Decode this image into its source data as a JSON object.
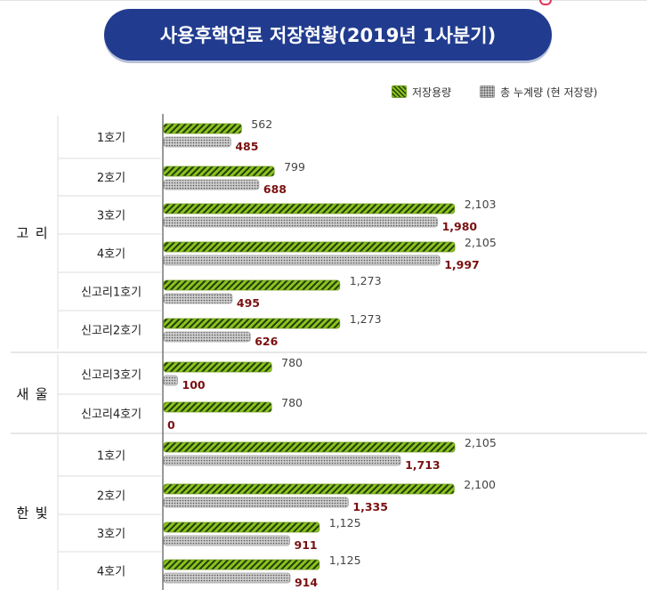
{
  "chart_data": {
    "type": "bar",
    "orientation": "horizontal",
    "title": "사용후핵연료 저장현황(2019년 1사분기)",
    "legend": [
      {
        "name": "저장용량",
        "pattern": "green-stripe"
      },
      {
        "name": "총 누계량 (현 저장량)",
        "pattern": "gray-dots"
      }
    ],
    "groups": [
      {
        "name": "고  리",
        "units": [
          {
            "label": "1호기",
            "capacity": 562,
            "stored": 485,
            "capacity_label": "562",
            "stored_label": "485"
          },
          {
            "label": "2호기",
            "capacity": 799,
            "stored": 688,
            "capacity_label": "799",
            "stored_label": "688"
          },
          {
            "label": "3호기",
            "capacity": 2103,
            "stored": 1980,
            "capacity_label": "2,103",
            "stored_label": "1,980"
          },
          {
            "label": "4호기",
            "capacity": 2105,
            "stored": 1997,
            "capacity_label": "2,105",
            "stored_label": "1,997"
          },
          {
            "label": "신고리1호기",
            "capacity": 1273,
            "stored": 495,
            "capacity_label": "1,273",
            "stored_label": "495"
          },
          {
            "label": "신고리2호기",
            "capacity": 1273,
            "stored": 626,
            "capacity_label": "1,273",
            "stored_label": "626"
          }
        ]
      },
      {
        "name": "새  울",
        "units": [
          {
            "label": "신고리3호기",
            "capacity": 780,
            "stored": 100,
            "capacity_label": "780",
            "stored_label": "100"
          },
          {
            "label": "신고리4호기",
            "capacity": 780,
            "stored": 0,
            "capacity_label": "780",
            "stored_label": "0"
          }
        ]
      },
      {
        "name": "한  빛",
        "units": [
          {
            "label": "1호기",
            "capacity": 2105,
            "stored": 1713,
            "capacity_label": "2,105",
            "stored_label": "1,713"
          },
          {
            "label": "2호기",
            "capacity": 2100,
            "stored": 1335,
            "capacity_label": "2,100",
            "stored_label": "1,335"
          },
          {
            "label": "3호기",
            "capacity": 1125,
            "stored": 911,
            "capacity_label": "1,125",
            "stored_label": "911"
          },
          {
            "label": "4호기",
            "capacity": 1125,
            "stored": 914,
            "capacity_label": "1,125",
            "stored_label": "914"
          }
        ]
      }
    ],
    "colors": {
      "capacity_fill": "#8dc21f",
      "capacity_stripe": "#1f3d0a",
      "stored_fill": "#c9c9c9",
      "stored_dot": "#555555",
      "capacity_label": "#444444",
      "stored_label": "#7a1010",
      "title_bg": "#213c8f"
    }
  }
}
